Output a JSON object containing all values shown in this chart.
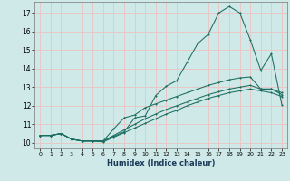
{
  "xlabel": "Humidex (Indice chaleur)",
  "background_color": "#cfe8e8",
  "grid_color": "#e8c8c8",
  "line_color": "#1a6e60",
  "xlim": [
    -0.5,
    23.5
  ],
  "ylim": [
    9.7,
    17.6
  ],
  "xticks": [
    0,
    1,
    2,
    3,
    4,
    5,
    6,
    7,
    8,
    9,
    10,
    11,
    12,
    13,
    14,
    15,
    16,
    17,
    18,
    19,
    20,
    21,
    22,
    23
  ],
  "yticks": [
    10,
    11,
    12,
    13,
    14,
    15,
    16,
    17
  ],
  "line1_x": [
    0,
    1,
    2,
    3,
    4,
    5,
    6,
    7,
    8,
    9,
    10,
    11,
    12,
    13,
    14,
    15,
    16,
    17,
    18,
    19,
    20,
    21,
    22,
    23
  ],
  "line1_y": [
    10.4,
    10.4,
    10.5,
    10.2,
    10.1,
    10.1,
    10.05,
    10.3,
    10.55,
    10.8,
    11.05,
    11.3,
    11.55,
    11.75,
    12.0,
    12.2,
    12.4,
    12.55,
    12.7,
    12.8,
    12.9,
    12.8,
    12.7,
    12.5
  ],
  "line2_x": [
    0,
    1,
    2,
    3,
    4,
    5,
    6,
    7,
    8,
    9,
    10,
    11,
    12,
    13,
    14,
    15,
    16,
    17,
    18,
    19,
    20,
    21,
    22,
    23
  ],
  "line2_y": [
    10.4,
    10.4,
    10.5,
    10.2,
    10.1,
    10.1,
    10.1,
    10.4,
    10.7,
    11.0,
    11.3,
    11.55,
    11.8,
    12.0,
    12.2,
    12.4,
    12.6,
    12.75,
    12.9,
    13.0,
    13.1,
    12.9,
    12.9,
    12.6
  ],
  "line3_x": [
    0,
    1,
    2,
    3,
    4,
    5,
    6,
    7,
    8,
    9,
    10,
    11,
    12,
    13,
    14,
    15,
    16,
    17,
    18,
    19,
    20,
    21,
    22,
    23
  ],
  "line3_y": [
    10.4,
    10.4,
    10.5,
    10.2,
    10.1,
    10.1,
    10.1,
    10.75,
    11.35,
    11.5,
    11.9,
    12.1,
    12.3,
    12.5,
    12.7,
    12.9,
    13.1,
    13.25,
    13.4,
    13.5,
    13.55,
    12.9,
    12.9,
    12.7
  ],
  "line4_x": [
    0,
    1,
    2,
    3,
    4,
    5,
    6,
    7,
    8,
    9,
    10,
    11,
    12,
    13,
    14,
    15,
    16,
    17,
    18,
    19,
    20,
    21,
    22,
    23
  ],
  "line4_y": [
    10.4,
    10.4,
    10.5,
    10.2,
    10.1,
    10.1,
    10.1,
    10.35,
    10.6,
    11.35,
    11.45,
    12.55,
    13.05,
    13.35,
    14.35,
    15.35,
    15.85,
    17.0,
    17.35,
    17.0,
    15.55,
    13.9,
    14.8,
    12.05
  ]
}
